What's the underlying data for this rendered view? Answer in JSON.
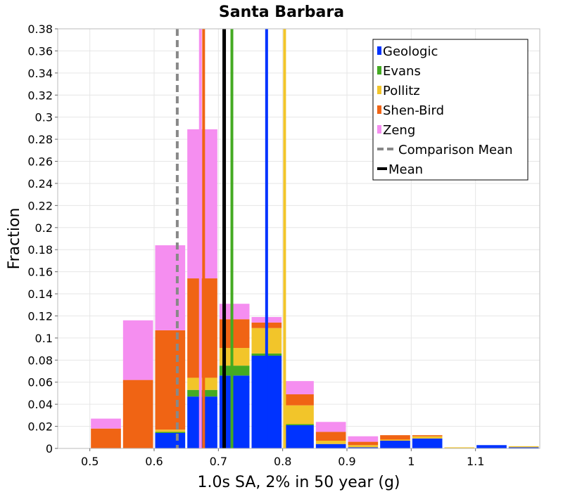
{
  "chart_data": {
    "type": "bar",
    "stacked": true,
    "title": "Santa Barbara",
    "xlabel": "1.0s SA, 2% in 50 year (g)",
    "ylabel": "Fraction",
    "xlim": [
      0.45,
      1.2
    ],
    "ylim": [
      0,
      0.38
    ],
    "bin_width": 0.05,
    "xticks": [
      "0.5",
      "0.6",
      "0.7",
      "0.8",
      "0.9",
      "1",
      "1.1"
    ],
    "xtick_values": [
      0.5,
      0.6,
      0.7,
      0.8,
      0.9,
      1.0,
      1.1
    ],
    "yticks": [
      "0",
      "0.02",
      "0.04",
      "0.06",
      "0.08",
      "0.1",
      "0.12",
      "0.14",
      "0.16",
      "0.18",
      "0.2",
      "0.22",
      "0.24",
      "0.26",
      "0.28",
      "0.3",
      "0.32",
      "0.34",
      "0.36",
      "0.38"
    ],
    "ytick_values": [
      0,
      0.02,
      0.04,
      0.06,
      0.08,
      0.1,
      0.12,
      0.14,
      0.16,
      0.18,
      0.2,
      0.22,
      0.24,
      0.26,
      0.28,
      0.3,
      0.32,
      0.34,
      0.36,
      0.38
    ],
    "bins": [
      0.45,
      0.5,
      0.55,
      0.6,
      0.65,
      0.7,
      0.75,
      0.8,
      0.85,
      0.9,
      0.95,
      1.0,
      1.05,
      1.1,
      1.15
    ],
    "series": [
      {
        "name": "Geologic",
        "color": "#0033ff",
        "values": [
          0,
          0,
          0,
          0.014,
          0.047,
          0.066,
          0.084,
          0.021,
          0.004,
          0.001,
          0.007,
          0.009,
          0,
          0.003,
          0.001
        ]
      },
      {
        "name": "Evans",
        "color": "#44aa22",
        "values": [
          0,
          0,
          0,
          0.001,
          0.006,
          0.009,
          0.002,
          0.001,
          0,
          0,
          0,
          0,
          0,
          0,
          0
        ]
      },
      {
        "name": "Pollitz",
        "color": "#f2c52a",
        "values": [
          0,
          0,
          0,
          0.002,
          0.011,
          0.016,
          0.023,
          0.017,
          0.003,
          0.002,
          0.001,
          0.002,
          0.001,
          0,
          0.001
        ]
      },
      {
        "name": "Shen-Bird",
        "color": "#f06414",
        "values": [
          0,
          0.018,
          0.062,
          0.09,
          0.09,
          0.026,
          0.005,
          0.01,
          0.008,
          0.003,
          0.004,
          0.001,
          0,
          0,
          0
        ]
      },
      {
        "name": "Zeng",
        "color": "#f58ef0",
        "values": [
          0,
          0.009,
          0.054,
          0.077,
          0.135,
          0.014,
          0.005,
          0.012,
          0.009,
          0.005,
          0,
          0,
          0,
          0,
          0
        ]
      }
    ],
    "vertical_lines": [
      {
        "series": "Shen-Bird",
        "x": 0.677,
        "color": "#f06414",
        "style": "solid"
      },
      {
        "series": "Zeng",
        "x": 0.672,
        "color": "#f58ef0",
        "style": "solid"
      },
      {
        "series": "Evans",
        "x": 0.721,
        "color": "#44aa22",
        "style": "solid"
      },
      {
        "series": "Geologic",
        "x": 0.775,
        "color": "#0033ff",
        "style": "solid"
      },
      {
        "series": "Pollitz",
        "x": 0.803,
        "color": "#f2c52a",
        "style": "solid"
      },
      {
        "series": "Comparison Mean",
        "x": 0.636,
        "color": "#888888",
        "style": "dashed"
      },
      {
        "series": "Mean",
        "x": 0.709,
        "color": "#000000",
        "style": "solid"
      }
    ],
    "legend": {
      "position": "top-right",
      "entries": [
        {
          "label": "Geologic",
          "color": "#0033ff",
          "kind": "box"
        },
        {
          "label": "Evans",
          "color": "#44aa22",
          "kind": "box"
        },
        {
          "label": "Pollitz",
          "color": "#f2c52a",
          "kind": "box"
        },
        {
          "label": "Shen-Bird",
          "color": "#f06414",
          "kind": "box"
        },
        {
          "label": "Zeng",
          "color": "#f58ef0",
          "kind": "box"
        },
        {
          "label": "Comparison Mean",
          "color": "#888888",
          "kind": "dashed"
        },
        {
          "label": "Mean",
          "color": "#000000",
          "kind": "line"
        }
      ]
    },
    "grid": true
  }
}
